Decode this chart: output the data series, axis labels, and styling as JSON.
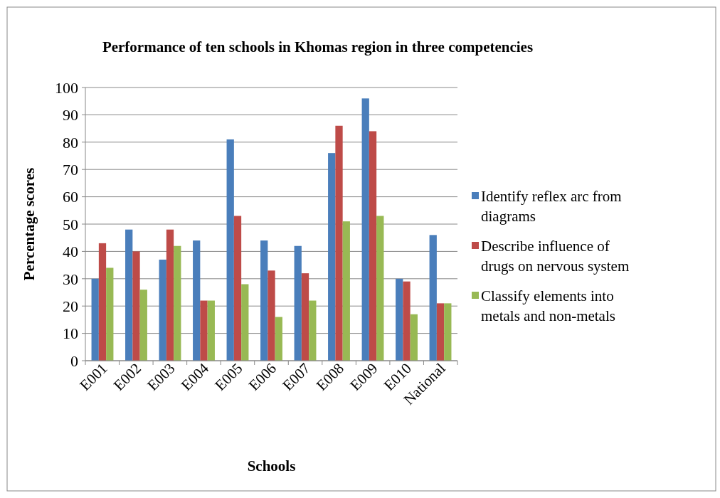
{
  "chart_data": {
    "type": "bar",
    "title": "Performance of ten schools in Khomas region in three competencies",
    "xlabel": "Schools",
    "ylabel": "Percentage scores",
    "categories": [
      "E001",
      "E002",
      "E003",
      "E004",
      "E005",
      "E006",
      "E007",
      "E008",
      "E009",
      "E010",
      "National"
    ],
    "series": [
      {
        "name": "Identify reflex arc from diagrams",
        "color": "#4a7ebb",
        "values": [
          30,
          48,
          37,
          44,
          81,
          44,
          42,
          76,
          96,
          30,
          46
        ]
      },
      {
        "name": "Describe influence of drugs on nervous system",
        "color": "#be4b48",
        "values": [
          43,
          40,
          48,
          22,
          53,
          33,
          32,
          86,
          84,
          29,
          21
        ]
      },
      {
        "name": "Classify elements into metals and non-metals",
        "color": "#98b954",
        "values": [
          34,
          26,
          42,
          22,
          28,
          16,
          22,
          51,
          53,
          17,
          21
        ]
      }
    ],
    "ylim": [
      0,
      100
    ],
    "yticks": [
      0,
      10,
      20,
      30,
      40,
      50,
      60,
      70,
      80,
      90,
      100
    ],
    "grid": "y",
    "legend": "right"
  }
}
